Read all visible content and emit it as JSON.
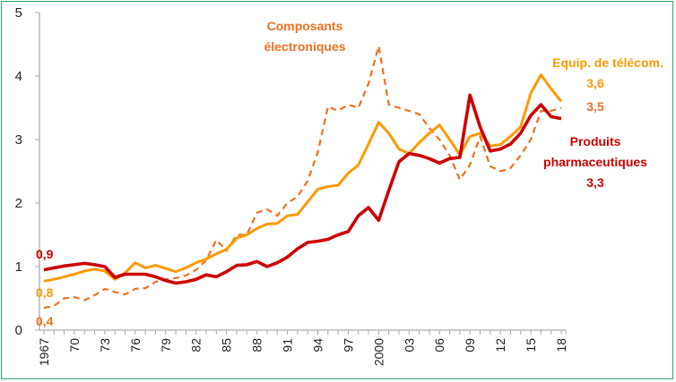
{
  "chart_data": {
    "type": "line",
    "title": "",
    "xlabel": "",
    "ylabel": "",
    "ylim": [
      0,
      5
    ],
    "xlim": [
      1967,
      2018
    ],
    "yticks": [
      0,
      1,
      2,
      3,
      4,
      5
    ],
    "ytick_labels": [
      "0",
      "1",
      "2",
      "3",
      "4",
      "5"
    ],
    "xtick_years": [
      1967,
      1970,
      1973,
      1976,
      1979,
      1982,
      1985,
      1988,
      1991,
      1994,
      1997,
      2000,
      2003,
      2006,
      2009,
      2012,
      2015,
      2018
    ],
    "xtick_labels": [
      "1967",
      "70",
      "73",
      "76",
      "79",
      "82",
      "85",
      "88",
      "91",
      "94",
      "97",
      "2000",
      "03",
      "06",
      "09",
      "12",
      "15",
      "18"
    ],
    "grid": false,
    "legend": "none (direct labels)",
    "x": [
      1967,
      1968,
      1969,
      1970,
      1971,
      1972,
      1973,
      1974,
      1975,
      1976,
      1977,
      1978,
      1979,
      1980,
      1981,
      1982,
      1983,
      1984,
      1985,
      1986,
      1987,
      1988,
      1989,
      1990,
      1991,
      1992,
      1993,
      1994,
      1995,
      1996,
      1997,
      1998,
      1999,
      2000,
      2001,
      2002,
      2003,
      2004,
      2005,
      2006,
      2007,
      2008,
      2009,
      2010,
      2011,
      2012,
      2013,
      2014,
      2015,
      2016,
      2017,
      2018
    ],
    "series": [
      {
        "name": "Composants électroniques",
        "color": "#f07020",
        "style": "dashed",
        "values": [
          0.35,
          0.38,
          0.5,
          0.52,
          0.47,
          0.55,
          0.65,
          0.6,
          0.56,
          0.65,
          0.66,
          0.76,
          0.8,
          0.82,
          0.86,
          0.95,
          1.1,
          1.42,
          1.25,
          1.5,
          1.5,
          1.85,
          1.9,
          1.8,
          2.0,
          2.1,
          2.35,
          2.8,
          3.52,
          3.45,
          3.55,
          3.5,
          3.88,
          4.47,
          3.55,
          3.5,
          3.45,
          3.4,
          3.18,
          3.0,
          2.75,
          2.37,
          2.6,
          3.05,
          2.58,
          2.5,
          2.55,
          2.75,
          3.0,
          3.45,
          3.45,
          3.5
        ],
        "start_label": "0,4",
        "end_label": "3,5"
      },
      {
        "name": "Equip. de télécom.",
        "color": "#ff9900",
        "style": "solid",
        "values": [
          0.77,
          0.8,
          0.84,
          0.88,
          0.93,
          0.96,
          0.93,
          0.8,
          0.9,
          1.06,
          0.98,
          1.02,
          0.97,
          0.92,
          0.98,
          1.06,
          1.12,
          1.2,
          1.27,
          1.45,
          1.5,
          1.6,
          1.67,
          1.68,
          1.8,
          1.82,
          2.02,
          2.22,
          2.26,
          2.28,
          2.47,
          2.6,
          2.93,
          3.27,
          3.1,
          2.85,
          2.78,
          2.95,
          3.1,
          3.23,
          3.0,
          2.76,
          3.05,
          3.1,
          2.9,
          2.92,
          3.05,
          3.2,
          3.73,
          4.02,
          3.8,
          3.6
        ],
        "start_label": "0,8",
        "end_label": "3,6"
      },
      {
        "name": "Produits pharmaceutiques",
        "color": "#cc0000",
        "style": "solid-thick",
        "values": [
          0.95,
          0.98,
          1.01,
          1.03,
          1.05,
          1.03,
          1.0,
          0.83,
          0.88,
          0.88,
          0.88,
          0.84,
          0.78,
          0.74,
          0.76,
          0.8,
          0.87,
          0.84,
          0.92,
          1.02,
          1.03,
          1.08,
          1.0,
          1.06,
          1.15,
          1.28,
          1.38,
          1.4,
          1.43,
          1.5,
          1.55,
          1.8,
          1.93,
          1.73,
          2.2,
          2.65,
          2.78,
          2.75,
          2.7,
          2.63,
          2.7,
          2.72,
          3.7,
          3.2,
          2.82,
          2.85,
          2.93,
          3.1,
          3.38,
          3.55,
          3.36,
          3.33
        ],
        "start_label": "0,9",
        "end_label": "3,3"
      }
    ],
    "annotations": {
      "composants_line1": "Composants",
      "composants_line2": "électroniques",
      "telecom": "Equip. de télécom.",
      "telecom_value": "3,6",
      "composants_value": "3,5",
      "pharma_line1": "Produits",
      "pharma_line2": "pharmaceutiques",
      "pharma_value": "3,3",
      "start_pharma": "0,9",
      "start_telecom": "0,8",
      "start_composants": "0,4"
    }
  }
}
